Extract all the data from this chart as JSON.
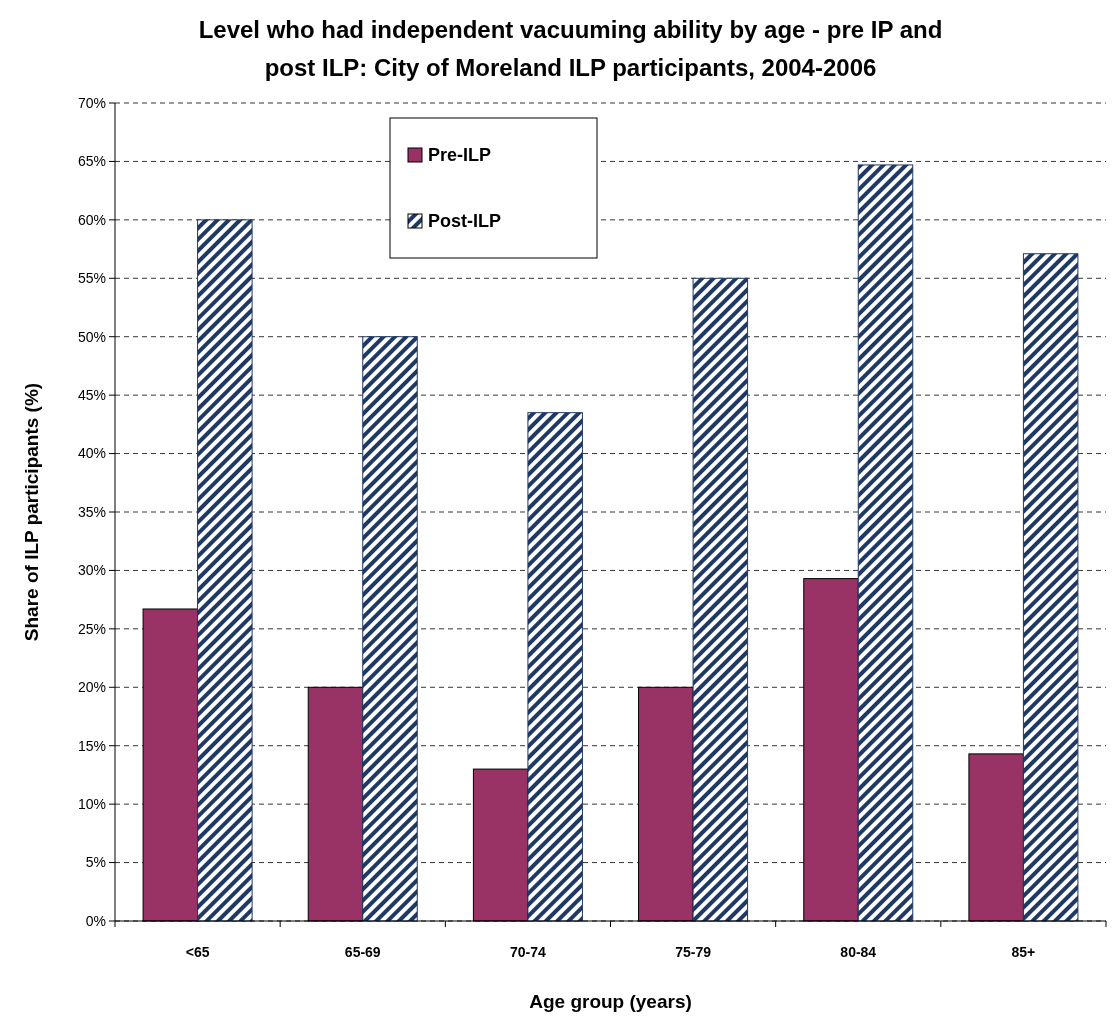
{
  "chart_data": {
    "type": "bar",
    "title": "Level who had independent vacuuming ability by age - pre IP and post ILP: City of Moreland ILP participants, 2004-2006",
    "xlabel": "Age group (years)",
    "ylabel": "Share of ILP participants (%)",
    "categories": [
      "<65",
      "65-69",
      "70-74",
      "75-79",
      "80-84",
      "85+"
    ],
    "series": [
      {
        "name": "Pre-ILP",
        "color": "#993366",
        "values": [
          26.7,
          20,
          13,
          20,
          29.3,
          14.3
        ]
      },
      {
        "name": "Post-ILP",
        "color": "#1f3864",
        "values": [
          60,
          50,
          43.5,
          55,
          64.7,
          57.1
        ]
      }
    ],
    "ylim": [
      0,
      70
    ],
    "yticks": [
      {
        "value": 0,
        "label": "0%"
      },
      {
        "value": 5,
        "label": "5%"
      },
      {
        "value": 10,
        "label": "10%"
      },
      {
        "value": 15,
        "label": "15%"
      },
      {
        "value": 20,
        "label": "20%"
      },
      {
        "value": 25,
        "label": "25%"
      },
      {
        "value": 30,
        "label": "30%"
      },
      {
        "value": 35,
        "label": "35%"
      },
      {
        "value": 40,
        "label": "40%"
      },
      {
        "value": 45,
        "label": "45%"
      },
      {
        "value": 50,
        "label": "50%"
      },
      {
        "value": 55,
        "label": "55%"
      },
      {
        "value": 60,
        "label": "60%"
      },
      {
        "value": 65,
        "label": "65%"
      },
      {
        "value": 70,
        "label": "70%"
      }
    ],
    "grid": "y",
    "legend": "top left"
  }
}
